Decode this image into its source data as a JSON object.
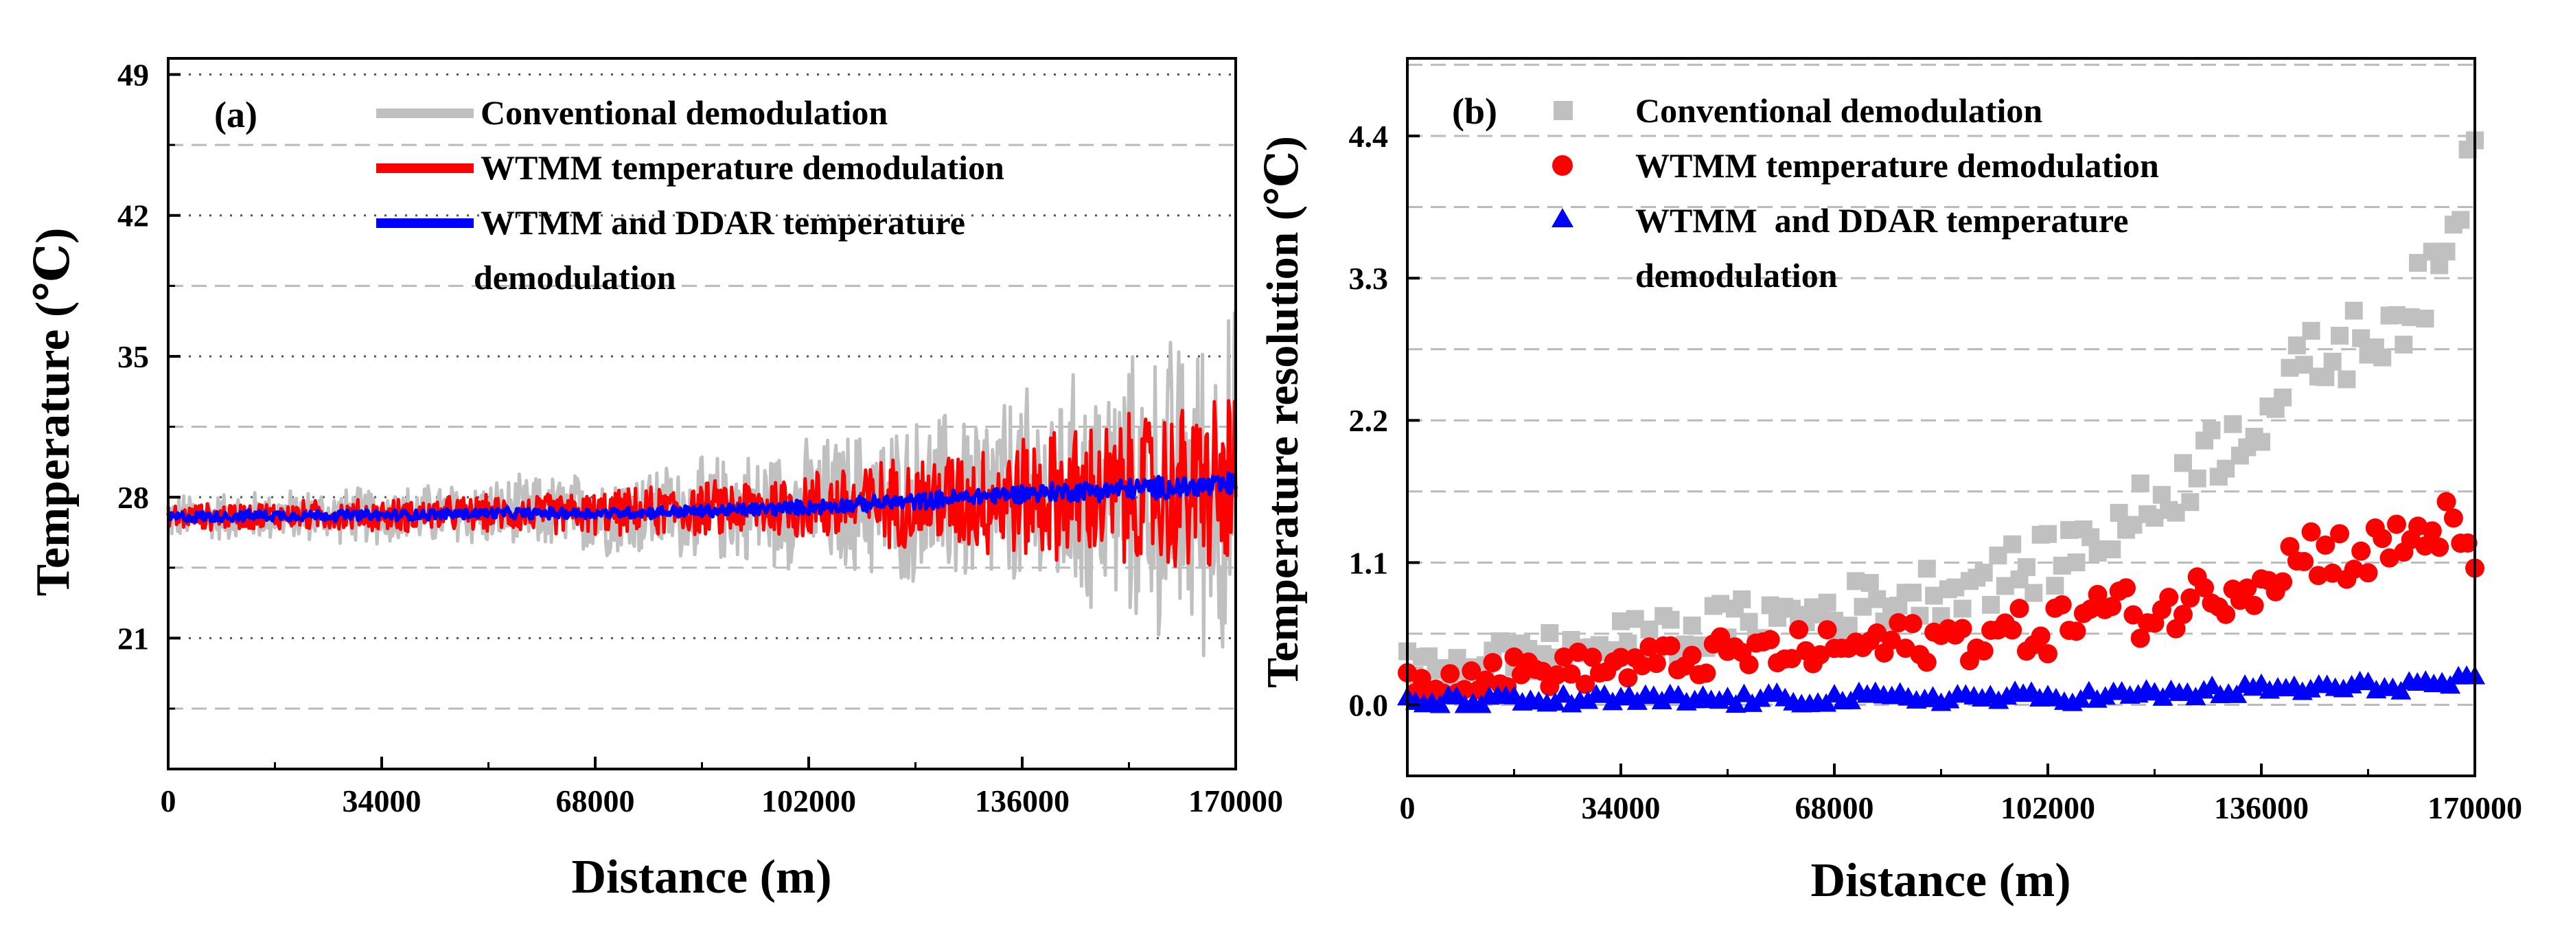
{
  "chart_data": [
    {
      "panel": "(a)",
      "type": "line",
      "xlabel": "Distance (m)",
      "ylabel": "Temperature (℃)",
      "xlim": [
        0,
        170000
      ],
      "ylim": [
        14.5,
        49.8
      ],
      "x_ticks": [
        0,
        34000,
        68000,
        102000,
        136000,
        170000
      ],
      "x_tick_labels": [
        "0",
        "34000",
        "68000",
        "102000",
        "136000",
        "170000"
      ],
      "y_ticks": [
        21,
        28,
        35,
        42,
        49
      ],
      "y_tick_labels": [
        "21",
        "28",
        "35",
        "42",
        "49"
      ],
      "y_dotted_gridlines": [
        21,
        28,
        35,
        42,
        49
      ],
      "y_dashed_gridlines": [
        17.5,
        24.5,
        31.5,
        38.5,
        45.5
      ],
      "legend_position": "top-left",
      "series": [
        {
          "name": "Conventional demodulation",
          "color": "#c0c0c0",
          "x": [
            0,
            17000,
            34000,
            51000,
            68000,
            85000,
            102000,
            119000,
            136000,
            153000,
            170000
          ],
          "mean": [
            27.0,
            27.1,
            27.1,
            27.2,
            27.2,
            27.4,
            27.6,
            27.8,
            28.0,
            28.2,
            28.5
          ],
          "half_spread": [
            1.3,
            1.4,
            1.6,
            1.9,
            2.3,
            2.8,
            3.6,
            4.6,
            5.8,
            7.4,
            10.0
          ]
        },
        {
          "name": "WTMM temperature demodulation",
          "color": "#ff0000",
          "x": [
            0,
            17000,
            34000,
            51000,
            68000,
            85000,
            102000,
            119000,
            136000,
            153000,
            170000
          ],
          "mean": [
            27.0,
            27.1,
            27.1,
            27.2,
            27.2,
            27.4,
            27.6,
            27.8,
            28.0,
            28.2,
            28.5
          ],
          "half_spread": [
            0.7,
            0.8,
            0.9,
            1.0,
            1.2,
            1.5,
            2.0,
            2.6,
            3.4,
            4.3,
            5.5
          ]
        },
        {
          "name": "WTMM and DDAR temperature demodulation",
          "color": "#0000ff",
          "x": [
            0,
            17000,
            34000,
            51000,
            68000,
            85000,
            102000,
            119000,
            136000,
            153000,
            170000
          ],
          "mean": [
            27.0,
            27.1,
            27.1,
            27.2,
            27.2,
            27.3,
            27.5,
            27.8,
            28.2,
            28.4,
            28.6
          ],
          "half_spread": [
            0.3,
            0.3,
            0.3,
            0.3,
            0.3,
            0.35,
            0.4,
            0.45,
            0.5,
            0.6,
            0.7
          ]
        }
      ]
    },
    {
      "panel": "(b)",
      "type": "scatter",
      "xlabel": "Distance (m)",
      "ylabel": "Temperature resolution (℃)",
      "xlim": [
        0,
        170000
      ],
      "ylim": [
        -0.55,
        5.0
      ],
      "x_ticks": [
        0,
        34000,
        68000,
        102000,
        136000,
        170000
      ],
      "x_tick_labels": [
        "0",
        "34000",
        "68000",
        "102000",
        "136000",
        "170000"
      ],
      "y_ticks": [
        0.0,
        1.1,
        2.2,
        3.3,
        4.4
      ],
      "y_tick_labels": [
        "0.0",
        "1.1",
        "2.2",
        "3.3",
        "4.4"
      ],
      "y_dashed_gridlines": [
        0.0,
        0.55,
        1.1,
        1.65,
        2.2,
        2.75,
        3.3,
        3.85,
        4.4,
        4.95
      ],
      "legend_position": "top-left",
      "series": [
        {
          "name": "Conventional demodulation",
          "marker": "square",
          "color": "#c0c0c0",
          "x": [
            0,
            17000,
            34000,
            51000,
            68000,
            85000,
            102000,
            110000,
            119000,
            127000,
            136000,
            144000,
            153000,
            161000,
            165000,
            170000
          ],
          "y": [
            0.28,
            0.38,
            0.48,
            0.62,
            0.74,
            0.9,
            1.1,
            1.3,
            1.55,
            1.9,
            2.25,
            2.65,
            2.85,
            3.15,
            3.3,
            4.55
          ]
        },
        {
          "name": "WTMM temperature demodulation",
          "marker": "circle",
          "color": "#ff0000",
          "x": [
            0,
            17000,
            34000,
            51000,
            68000,
            85000,
            102000,
            110000,
            119000,
            127000,
            136000,
            144000,
            153000,
            160000,
            165000,
            170000
          ],
          "y": [
            0.18,
            0.25,
            0.3,
            0.38,
            0.44,
            0.5,
            0.58,
            0.75,
            0.7,
            0.85,
            1.0,
            1.2,
            1.15,
            1.3,
            1.4,
            1.05
          ]
        },
        {
          "name": "WTMM  and DDAR temperature demodulation",
          "marker": "triangle",
          "color": "#0000ff",
          "x": [
            0,
            17000,
            34000,
            51000,
            68000,
            85000,
            102000,
            119000,
            136000,
            153000,
            170000
          ],
          "y": [
            0.02,
            0.03,
            0.04,
            0.04,
            0.05,
            0.06,
            0.06,
            0.08,
            0.12,
            0.14,
            0.18
          ]
        }
      ]
    }
  ]
}
